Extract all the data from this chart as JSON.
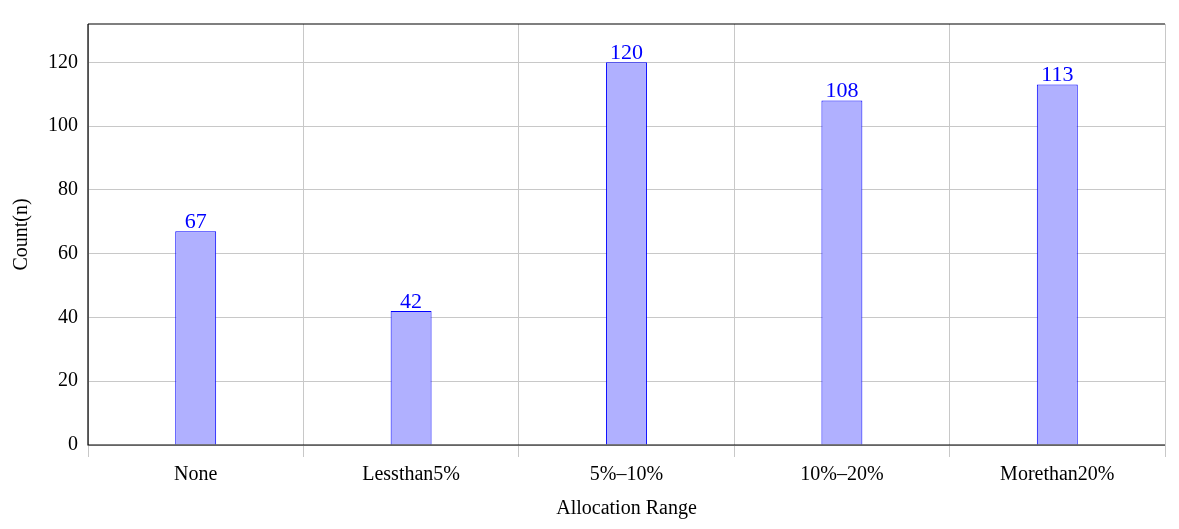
{
  "chart_data": {
    "type": "bar",
    "xlabel": "Allocation Range",
    "ylabel": "Count(n)",
    "categories": [
      "None",
      "Lessthan5%",
      "5%–10%",
      "10%–20%",
      "Morethan20%"
    ],
    "values": [
      67,
      42,
      120,
      108,
      113
    ],
    "color": "#b0b0ff",
    "ylim": [
      0,
      132
    ],
    "yticks": [
      0,
      20,
      40,
      60,
      80,
      100,
      120
    ],
    "grid": true,
    "legend": false,
    "data_labels": true
  }
}
